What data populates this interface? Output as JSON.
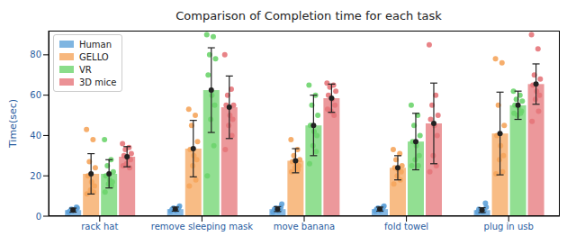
{
  "chart_data": {
    "type": "bar",
    "title": "Comparison of Completion time for each task",
    "y_label": "Time(sec)",
    "categories": [
      "rack hat",
      "remove sleeping mask",
      "move banana",
      "fold towel",
      "plug in usb"
    ],
    "ylim": [
      0,
      92
    ],
    "yticks": [
      0,
      20,
      40,
      60,
      80
    ],
    "grid": false,
    "legend": "upper left",
    "series": [
      {
        "name": "Human",
        "color": "#5fa2d9",
        "values": [
          3,
          3.5,
          3.5,
          3.5,
          3
        ],
        "error": [
          1,
          1,
          1.2,
          1,
          1.2
        ],
        "points": [
          [
            2,
            3,
            3.5,
            4,
            2.5,
            3,
            4.5,
            2.8
          ],
          [
            2.5,
            3,
            4,
            5,
            3.5,
            2.8,
            4.2,
            3.2
          ],
          [
            2,
            3,
            4,
            6,
            3.5,
            2.5,
            4.5,
            3.2
          ],
          [
            2.5,
            3,
            4,
            5,
            3.5,
            2.8,
            4.5,
            3
          ],
          [
            2,
            2.5,
            3,
            4.5,
            3.5,
            2.2,
            6.5,
            2.8
          ]
        ]
      },
      {
        "name": "GELLO",
        "color": "#f5a55c",
        "values": [
          21,
          33.5,
          27.5,
          24,
          41
        ],
        "error": [
          10,
          14,
          6,
          6,
          20.5
        ],
        "points": [
          [
            43,
            38,
            27,
            24,
            20,
            17,
            15,
            13,
            12,
            11
          ],
          [
            53,
            50,
            45,
            37,
            33,
            30,
            28,
            25,
            18,
            15
          ],
          [
            38,
            33,
            30,
            28,
            27,
            26,
            25,
            24,
            23,
            22
          ],
          [
            33,
            31,
            28,
            25,
            24,
            23,
            22,
            20,
            18,
            16
          ],
          [
            78,
            76,
            55,
            45,
            40,
            35,
            30,
            28,
            22,
            21
          ]
        ]
      },
      {
        "name": "VR",
        "color": "#6dd46d",
        "values": [
          21,
          62.5,
          45,
          37,
          55
        ],
        "error": [
          7,
          21,
          15,
          14,
          7
        ],
        "points": [
          [
            38,
            28,
            25,
            22,
            20,
            18,
            17,
            16,
            15,
            12
          ],
          [
            90,
            89,
            80,
            78,
            70,
            60,
            55,
            48,
            35,
            20
          ],
          [
            65,
            60,
            55,
            50,
            45,
            42,
            40,
            35,
            32,
            26
          ],
          [
            55,
            50,
            45,
            40,
            37,
            35,
            30,
            28,
            25,
            25
          ],
          [
            62,
            60,
            58,
            57,
            55,
            54,
            52,
            50,
            51,
            51
          ]
        ]
      },
      {
        "name": "3D mice",
        "color": "#e6767a",
        "values": [
          29.5,
          54,
          58.5,
          46,
          65.5
        ],
        "error": [
          5,
          15.5,
          7,
          20,
          10
        ],
        "points": [
          [
            36,
            34,
            33,
            31,
            30,
            29,
            28,
            26,
            24,
            25
          ],
          [
            80,
            63,
            60,
            55,
            55,
            50,
            48,
            45,
            40,
            33
          ],
          [
            66,
            65,
            64,
            62,
            60,
            58,
            55,
            52,
            50,
            53
          ],
          [
            85,
            60,
            55,
            50,
            48,
            45,
            40,
            30,
            25,
            22
          ],
          [
            90,
            83,
            70,
            68,
            65,
            62,
            60,
            58,
            52,
            47
          ]
        ]
      }
    ]
  }
}
